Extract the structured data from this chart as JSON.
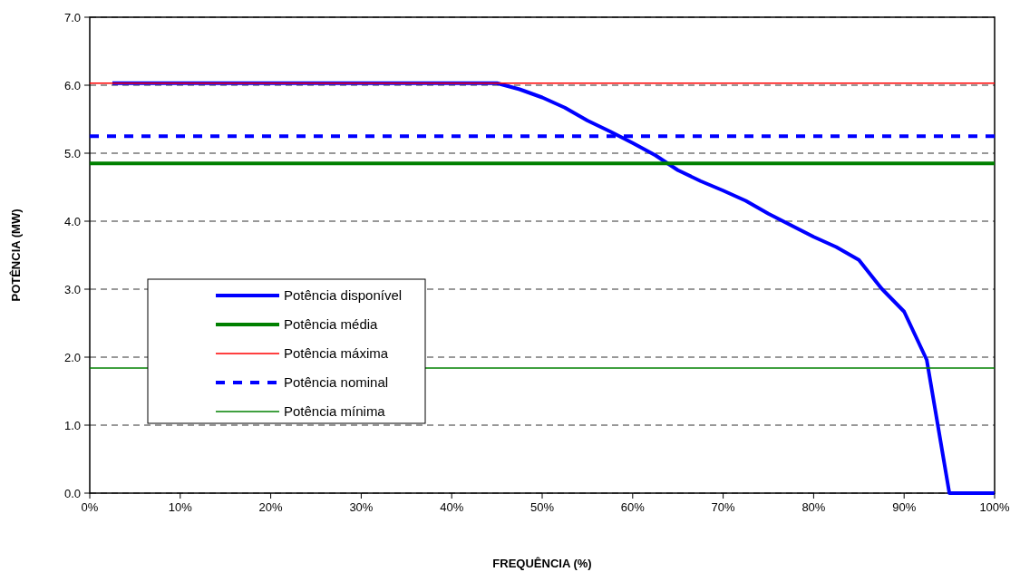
{
  "chart_data": {
    "type": "line",
    "xlabel": "FREQUÊNCIA (%)",
    "ylabel": "POTÊNCIA (MW)",
    "xlim": [
      0,
      100
    ],
    "ylim": [
      0,
      7
    ],
    "xticks": [
      {
        "value": 0,
        "label": "0%"
      },
      {
        "value": 10,
        "label": "10%"
      },
      {
        "value": 20,
        "label": "20%"
      },
      {
        "value": 30,
        "label": "30%"
      },
      {
        "value": 40,
        "label": "40%"
      },
      {
        "value": 50,
        "label": "50%"
      },
      {
        "value": 60,
        "label": "60%"
      },
      {
        "value": 70,
        "label": "70%"
      },
      {
        "value": 80,
        "label": "80%"
      },
      {
        "value": 90,
        "label": "90%"
      },
      {
        "value": 100,
        "label": "100%"
      }
    ],
    "yticks": [
      {
        "value": 0,
        "label": "0.0"
      },
      {
        "value": 1,
        "label": "1.0"
      },
      {
        "value": 2,
        "label": "2.0"
      },
      {
        "value": 3,
        "label": "3.0"
      },
      {
        "value": 4,
        "label": "4.0"
      },
      {
        "value": 5,
        "label": "5.0"
      },
      {
        "value": 6,
        "label": "6.0"
      },
      {
        "value": 7,
        "label": "7.0"
      }
    ],
    "grid": "y",
    "legend": "bottom left",
    "series": [
      {
        "name": "Potência disponível",
        "color": "#0000ff",
        "line_style": "solid",
        "x": [
          2.5,
          45,
          47.5,
          50,
          52.5,
          55,
          57.5,
          60,
          62.5,
          65,
          67.5,
          70,
          72.5,
          75,
          80,
          82.5,
          85,
          87.5,
          90,
          92.5,
          95,
          100
        ],
        "values": [
          6.03,
          6.03,
          5.94,
          5.82,
          5.67,
          5.48,
          5.32,
          5.15,
          4.97,
          4.75,
          4.59,
          4.45,
          4.3,
          4.11,
          3.77,
          3.62,
          3.43,
          3.01,
          2.67,
          1.96,
          0,
          0
        ]
      },
      {
        "name": "Potência média",
        "color": "#008000",
        "line_style": "solid",
        "x": [
          0,
          100
        ],
        "values": [
          4.85,
          4.85
        ]
      },
      {
        "name": "Potência máxima",
        "color": "#ff0000",
        "line_style": "solid",
        "x": [
          0,
          100
        ],
        "values": [
          6.03,
          6.03
        ]
      },
      {
        "name": "Potência nominal",
        "color": "#0000ff",
        "line_style": "dashed",
        "x": [
          0,
          100
        ],
        "values": [
          5.25,
          5.25
        ]
      },
      {
        "name": "Potência mínima",
        "color": "#008000",
        "line_style": "solid",
        "x": [
          0,
          100
        ],
        "values": [
          1.84,
          1.84
        ]
      }
    ]
  }
}
